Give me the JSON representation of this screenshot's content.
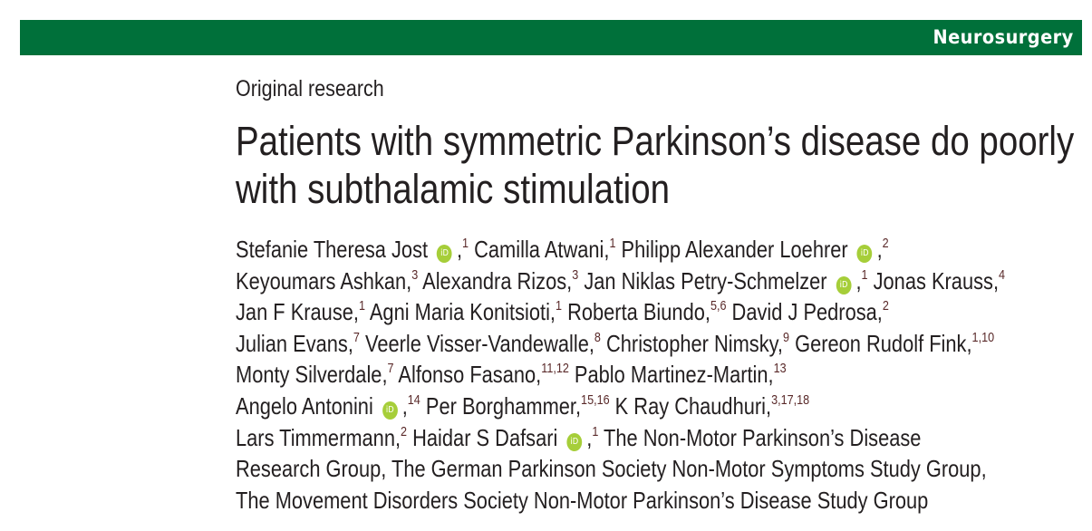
{
  "journal": {
    "section": "Neurosurgery",
    "brand_color": "#00703a"
  },
  "article_type": "Original research",
  "title_lines": [
    "Patients with symmetric Parkinson’s disease do poorly",
    "with subthalamic stimulation"
  ],
  "orcid_label": "iD",
  "author_lines": [
    [
      {
        "name": "Stefanie Theresa Jost",
        "orcid": true,
        "sup": "1"
      },
      {
        "name": "Camilla Atwani",
        "sup": "1"
      },
      {
        "name": "Philipp Alexander Loehrer",
        "orcid": true,
        "sup": "2"
      }
    ],
    [
      {
        "name": "Keyoumars Ashkan",
        "sup": "3"
      },
      {
        "name": "Alexandra Rizos",
        "sup": "3"
      },
      {
        "name": "Jan Niklas Petry-Schmelzer",
        "orcid": true,
        "sup": "1"
      },
      {
        "name": "Jonas Krauss",
        "sup": "4"
      }
    ],
    [
      {
        "name": "Jan F Krause",
        "sup": "1"
      },
      {
        "name": "Agni Maria Konitsioti",
        "sup": "1"
      },
      {
        "name": "Roberta Biundo",
        "sup": "5,6"
      },
      {
        "name": "David J Pedrosa",
        "sup": "2"
      }
    ],
    [
      {
        "name": "Julian Evans",
        "sup": "7"
      },
      {
        "name": "Veerle Visser-Vandewalle",
        "sup": "8"
      },
      {
        "name": "Christopher Nimsky",
        "sup": "9"
      },
      {
        "name": "Gereon Rudolf Fink",
        "sup": "1,10"
      }
    ],
    [
      {
        "name": "Monty Silverdale",
        "sup": "7"
      },
      {
        "name": "Alfonso Fasano",
        "sup": "11,12"
      },
      {
        "name": "Pablo Martinez-Martin",
        "sup": "13"
      }
    ],
    [
      {
        "name": "Angelo Antonini",
        "orcid": true,
        "sup": "14"
      },
      {
        "name": "Per Borghammer",
        "sup": "15,16"
      },
      {
        "name": "K Ray Chaudhuri",
        "sup": "3,17,18"
      }
    ],
    [
      {
        "name": "Lars Timmermann",
        "sup": "2"
      },
      {
        "name": "Haidar S Dafsari",
        "orcid": true,
        "sup": "1"
      },
      {
        "text": "The Non-Motor Parkinson’s Disease"
      }
    ],
    [
      {
        "text": "Research Group, The German Parkinson Society Non-Motor Symptoms Study Group,"
      }
    ],
    [
      {
        "text": "The Movement Disorders Society Non-Motor Parkinson’s Disease Study Group"
      }
    ]
  ]
}
